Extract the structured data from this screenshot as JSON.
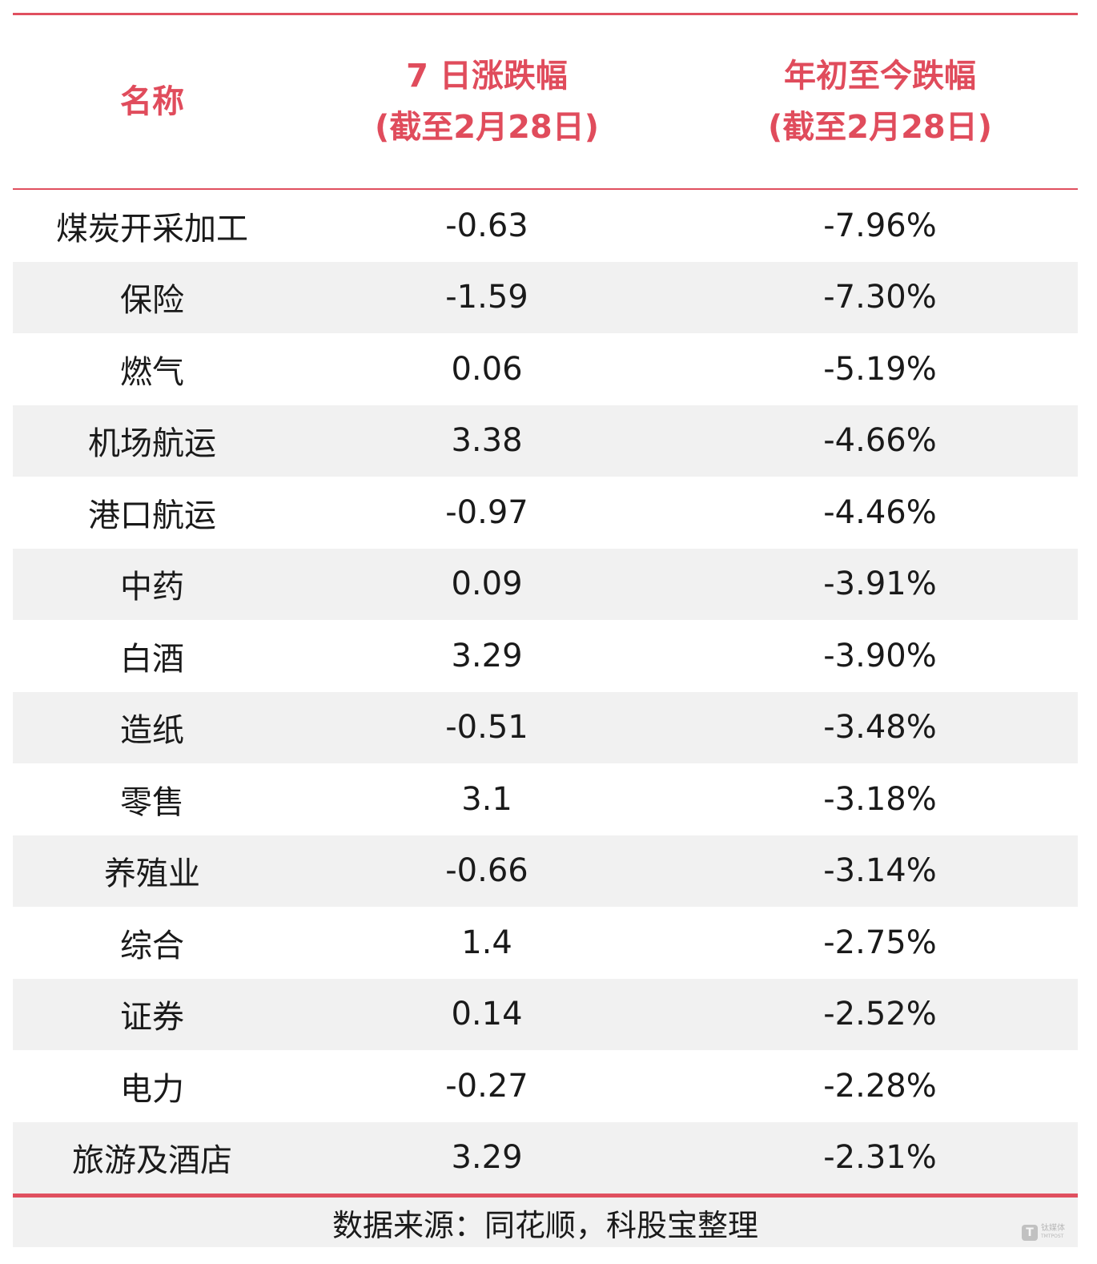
{
  "chart_data": {
    "type": "table",
    "columns": [
      {
        "line1": "名称",
        "line2": ""
      },
      {
        "line1": "7 日涨跌幅",
        "line2": "(截至2月28日)"
      },
      {
        "line1": "年初至今跌幅",
        "line2": "(截至2月28日)"
      }
    ],
    "rows": [
      {
        "name": "煤炭开采加工",
        "change_7d": "-0.63",
        "change_ytd": "-7.96%"
      },
      {
        "name": "保险",
        "change_7d": "-1.59",
        "change_ytd": "-7.30%"
      },
      {
        "name": "燃气",
        "change_7d": "0.06",
        "change_ytd": "-5.19%"
      },
      {
        "name": "机场航运",
        "change_7d": "3.38",
        "change_ytd": "-4.66%"
      },
      {
        "name": "港口航运",
        "change_7d": "-0.97",
        "change_ytd": "-4.46%"
      },
      {
        "name": "中药",
        "change_7d": "0.09",
        "change_ytd": "-3.91%"
      },
      {
        "name": "白酒",
        "change_7d": "3.29",
        "change_ytd": "-3.90%"
      },
      {
        "name": "造纸",
        "change_7d": "-0.51",
        "change_ytd": "-3.48%"
      },
      {
        "name": "零售",
        "change_7d": "3.1",
        "change_ytd": "-3.18%"
      },
      {
        "name": "养殖业",
        "change_7d": "-0.66",
        "change_ytd": "-3.14%"
      },
      {
        "name": "综合",
        "change_7d": "1.4",
        "change_ytd": "-2.75%"
      },
      {
        "name": "证券",
        "change_7d": "0.14",
        "change_ytd": "-2.52%"
      },
      {
        "name": "电力",
        "change_7d": "-0.27",
        "change_ytd": "-2.28%"
      },
      {
        "name": "旅游及酒店",
        "change_7d": "3.29",
        "change_ytd": "-2.31%"
      }
    ],
    "source": "数据来源：同花顺，科股宝整理"
  },
  "colors": {
    "accent": "#e0505f",
    "row_alt": "#f1f1f1",
    "text": "#1a1a1a"
  },
  "watermark": {
    "icon": "tmtpost-logo-icon",
    "mark": "T",
    "name": "钛媒体",
    "sub": "TMTPOST"
  }
}
